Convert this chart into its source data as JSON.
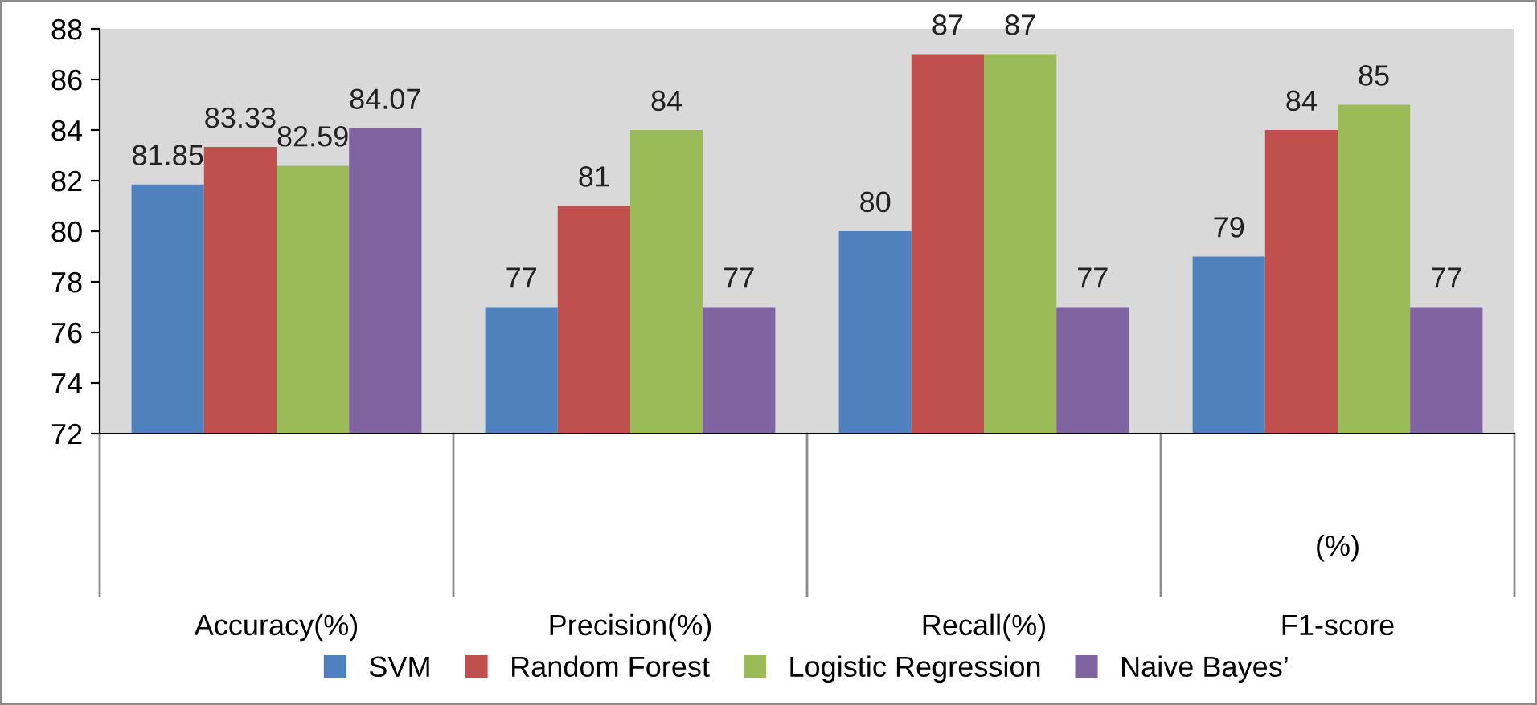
{
  "chart_data": {
    "type": "bar",
    "categories": [
      "Accuracy(%)",
      "Precision(%)",
      "Recall(%)",
      "(%)\n\nF1-score"
    ],
    "series": [
      {
        "name": "SVM",
        "color": "#4f81bd",
        "values": [
          81.85,
          77,
          80,
          79
        ]
      },
      {
        "name": "Random Forest",
        "color": "#c0504d",
        "values": [
          83.33,
          81,
          87,
          84
        ]
      },
      {
        "name": "Logistic Regression",
        "color": "#9bbb59",
        "values": [
          82.59,
          84,
          87,
          85
        ]
      },
      {
        "name": "Naive Bayes’",
        "color": "#8064a2",
        "values": [
          84.07,
          77,
          77,
          77
        ]
      }
    ],
    "ylim": [
      72,
      88
    ],
    "yticks": [
      72,
      74,
      76,
      78,
      80,
      82,
      84,
      86,
      88
    ],
    "data_labels": true,
    "legend": "bottom",
    "grid": false
  }
}
